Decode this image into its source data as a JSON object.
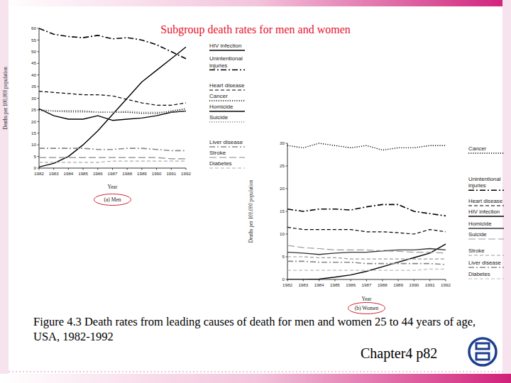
{
  "slide": {
    "title": "Subgroup death rates for men and women",
    "caption": "Figure 4.3 Death rates from leading causes of death for men and women 25 to 44 years of age, USA, 1982-1992",
    "footer": "Chapter4 p82"
  },
  "chart_data": [
    {
      "type": "line",
      "title": "(a) Men",
      "x_label": "Year",
      "y_label": "Deaths per 100,000 population",
      "x": [
        1982,
        1983,
        1984,
        1985,
        1986,
        1987,
        1988,
        1989,
        1990,
        1991,
        1992
      ],
      "xlim": [
        1982,
        1992
      ],
      "xticks": [
        1982,
        1983,
        1984,
        1985,
        1986,
        1987,
        1988,
        1989,
        1990,
        1991,
        1992
      ],
      "ylim": [
        0,
        60
      ],
      "yticks": [
        0,
        5,
        10,
        15,
        20,
        25,
        30,
        35,
        40,
        45,
        50,
        55,
        60
      ],
      "grid": false,
      "legend": "right",
      "series": [
        {
          "name": "HIV infection",
          "color": "#000000",
          "line_style": "solid",
          "values": [
            0.5,
            2,
            5,
            10,
            16,
            23,
            30,
            37,
            42,
            47,
            52
          ]
        },
        {
          "name": "Unintentional injuries",
          "color": "#000000",
          "line_style": "dashdot",
          "values": [
            60,
            57.5,
            56.5,
            56,
            57,
            55.5,
            56,
            55,
            53,
            50,
            47
          ]
        },
        {
          "name": "Heart disease",
          "color": "#000000",
          "line_style": "dashed",
          "values": [
            33,
            32.5,
            32,
            31.5,
            31.5,
            31,
            29.5,
            28,
            27,
            27,
            28
          ]
        },
        {
          "name": "Cancer",
          "color": "#000000",
          "line_style": "dotted",
          "values": [
            25,
            24.5,
            24.5,
            24.5,
            24,
            24,
            24,
            23.5,
            23.5,
            24.5,
            25.5
          ]
        },
        {
          "name": "Homicide",
          "color": "#000000",
          "line_style": "solid",
          "values": [
            25.5,
            22.5,
            21,
            21,
            22.5,
            20.5,
            21,
            21.5,
            22.5,
            24,
            24.5
          ]
        },
        {
          "name": "Suicide",
          "color": "#888888",
          "line_style": "dotted",
          "values": [
            24.5,
            24.5,
            24,
            24,
            24,
            24,
            24.5,
            24,
            24,
            24,
            24.5
          ]
        },
        {
          "name": "Liver disease",
          "color": "#888888",
          "line_style": "dashdot",
          "values": [
            8.5,
            8.5,
            8.5,
            8.5,
            8,
            8,
            8.5,
            8.5,
            8,
            7.5,
            7.5
          ]
        },
        {
          "name": "Stroke",
          "color": "#888888",
          "line_style": "longdash",
          "values": [
            4.5,
            4.5,
            4.5,
            4.5,
            4.5,
            4.5,
            4.5,
            4.5,
            4.5,
            4,
            4
          ]
        },
        {
          "name": "Diabetes",
          "color": "#aaaaaa",
          "line_style": "dashed",
          "values": [
            2.5,
            2.5,
            2.5,
            2.5,
            2.5,
            3,
            3,
            3,
            3,
            3,
            3
          ]
        }
      ]
    },
    {
      "type": "line",
      "title": "(b) Women",
      "x_label": "Year",
      "y_label": "Deaths per 100,000 population",
      "x": [
        1982,
        1983,
        1984,
        1985,
        1986,
        1987,
        1988,
        1989,
        1990,
        1991,
        1992
      ],
      "xlim": [
        1982,
        1992
      ],
      "xticks": [
        1982,
        1983,
        1984,
        1985,
        1986,
        1987,
        1988,
        1989,
        1990,
        1991,
        1992
      ],
      "ylim": [
        0,
        30
      ],
      "yticks": [
        0,
        5,
        10,
        15,
        20,
        25,
        30
      ],
      "grid": false,
      "legend": "right",
      "series": [
        {
          "name": "Cancer",
          "color": "#000000",
          "line_style": "dotted",
          "values": [
            29.5,
            29,
            30,
            29.5,
            29,
            29.5,
            28.5,
            29,
            29,
            29.5,
            29.5
          ]
        },
        {
          "name": "Unintentional injuries",
          "color": "#000000",
          "line_style": "dashdot",
          "values": [
            15.5,
            15,
            15.5,
            15.5,
            15.3,
            16,
            16.5,
            16.5,
            15,
            14.5,
            14
          ]
        },
        {
          "name": "Heart disease",
          "color": "#000000",
          "line_style": "dashed",
          "values": [
            11.5,
            11,
            11,
            11,
            11,
            10.5,
            10.5,
            10.3,
            10,
            11,
            10.5
          ]
        },
        {
          "name": "HIV infection",
          "color": "#000000",
          "line_style": "solid",
          "values": [
            0,
            0,
            0.1,
            0.5,
            1,
            1.8,
            2.8,
            3.8,
            4.8,
            5.8,
            7.8
          ]
        },
        {
          "name": "Homicide",
          "color": "#333333",
          "line_style": "solid",
          "values": [
            6,
            5.8,
            5.5,
            5.8,
            6,
            6,
            6.3,
            6.5,
            6.5,
            6.8,
            6.5
          ]
        },
        {
          "name": "Suicide",
          "color": "#999999",
          "line_style": "longdash",
          "values": [
            7.5,
            7,
            6.8,
            6.5,
            6.5,
            6.5,
            6.3,
            6.2,
            6,
            6,
            5.8
          ]
        },
        {
          "name": "Stroke",
          "color": "#999999",
          "line_style": "dashed",
          "values": [
            5,
            5,
            4.8,
            4.8,
            4.5,
            4.5,
            4.5,
            4.5,
            4.5,
            4.5,
            4.5
          ]
        },
        {
          "name": "Liver disease",
          "color": "#888888",
          "line_style": "dashdot",
          "values": [
            4,
            4,
            3.8,
            3.8,
            3.8,
            3.5,
            3.5,
            3.5,
            3.5,
            3.5,
            3.3
          ]
        },
        {
          "name": "Diabetes",
          "color": "#bbbbbb",
          "line_style": "dashed",
          "values": [
            2,
            2,
            2,
            2,
            2,
            2,
            2,
            2,
            2,
            2.3,
            2.3
          ]
        }
      ]
    }
  ]
}
